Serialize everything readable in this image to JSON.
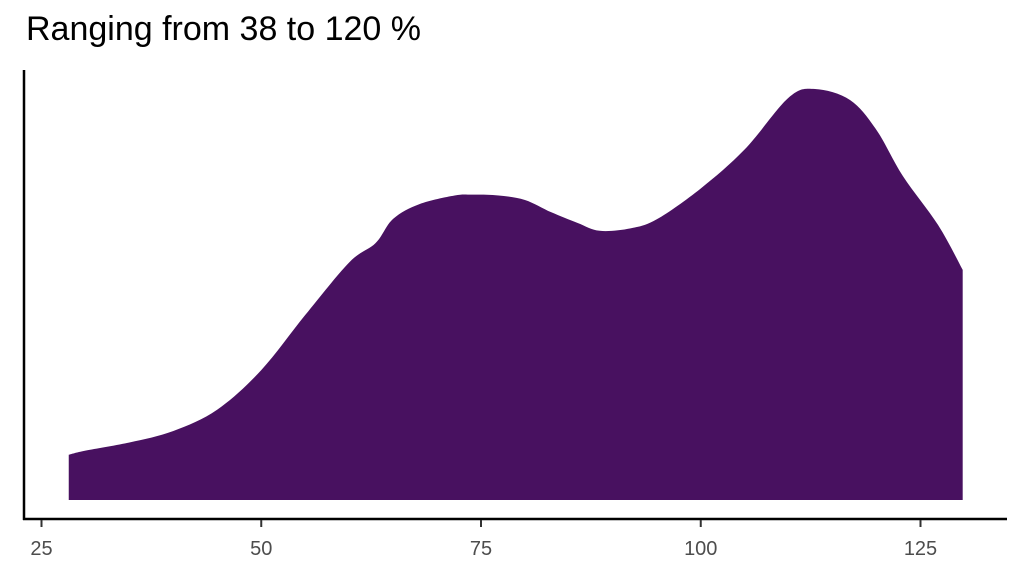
{
  "chart_data": {
    "type": "area",
    "title": "Ranging from 38 to 120 %",
    "xlabel": "",
    "ylabel": "",
    "xlim": [
      22.5,
      135
    ],
    "x_ticks": [
      25,
      50,
      75,
      100,
      125
    ],
    "y_ticks": [],
    "grid": false,
    "legend": null,
    "fill_color": "#481160",
    "x": [
      28.1,
      30,
      35,
      40,
      45,
      50,
      55,
      60,
      63,
      65,
      68,
      72,
      74,
      77,
      80,
      83,
      86,
      88.5,
      92,
      95,
      100,
      105,
      110,
      113,
      117,
      120,
      123,
      127,
      129.8
    ],
    "values": [
      0.11,
      0.12,
      0.14,
      0.168,
      0.22,
      0.316,
      0.45,
      0.578,
      0.625,
      0.684,
      0.72,
      0.741,
      0.743,
      0.741,
      0.73,
      0.7,
      0.674,
      0.655,
      0.661,
      0.683,
      0.758,
      0.853,
      0.979,
      1.0,
      0.973,
      0.9,
      0.788,
      0.669,
      0.56
    ],
    "y_note": "relative density (no y-axis labels shown); normalized to peak = 1.0"
  }
}
